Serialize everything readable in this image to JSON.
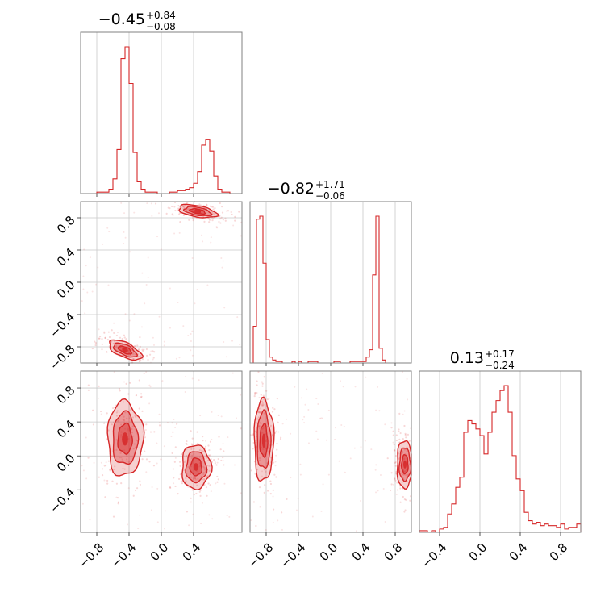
{
  "figure": {
    "type": "corner-plot",
    "color": "#d62728"
  },
  "chart_data": [
    {
      "type": "histogram",
      "panel": "diag-0",
      "title": {
        "main": "−0.45",
        "up": "+0.84",
        "down": "−0.08"
      },
      "xlim": [
        -1.0,
        1.0
      ],
      "bin_edges_start": -1.0,
      "bin_width": 0.05,
      "counts": [
        0,
        0,
        0,
        0,
        1,
        1,
        1,
        3,
        10,
        30,
        92,
        100,
        75,
        28,
        8,
        3,
        1,
        1,
        1,
        0,
        0,
        0,
        1,
        1,
        2,
        2,
        3,
        4,
        7,
        15,
        33,
        37,
        29,
        12,
        3,
        1,
        1,
        0,
        0,
        0
      ],
      "xticks": [
        "−0.8",
        "−0.4",
        "0.0",
        "0.4"
      ],
      "xtick_values": [
        -0.8,
        -0.4,
        0.0,
        0.4
      ]
    },
    {
      "type": "histogram",
      "panel": "diag-1",
      "title": {
        "main": "−0.82",
        "up": "+1.71",
        "down": "−0.06"
      },
      "xlim": [
        -1.0,
        1.0
      ],
      "bin_edges_start": -1.0,
      "bin_width": 0.04,
      "counts": [
        0,
        25,
        98,
        100,
        68,
        16,
        4,
        2,
        1,
        1,
        0,
        0,
        0,
        1,
        0,
        1,
        0,
        0,
        1,
        1,
        1,
        0,
        0,
        0,
        0,
        0,
        1,
        1,
        0,
        0,
        0,
        1,
        1,
        1,
        1,
        1,
        4,
        9,
        60,
        100,
        10,
        2
      ],
      "xticks": [
        "−0.8",
        "−0.4",
        "0.0",
        "0.4",
        "0.8"
      ],
      "xtick_values": [
        -0.8,
        -0.4,
        0.0,
        0.4,
        0.8
      ]
    },
    {
      "type": "histogram",
      "panel": "diag-2",
      "title": {
        "main": "0.13",
        "up": "+0.17",
        "down": "−0.24"
      },
      "xlim": [
        -0.6,
        1.0
      ],
      "bin_edges_start": -0.6,
      "bin_width": 0.04,
      "counts": [
        1,
        1,
        0,
        1,
        0,
        2,
        3,
        11,
        17,
        27,
        33,
        60,
        67,
        65,
        62,
        58,
        47,
        60,
        72,
        79,
        85,
        88,
        72,
        46,
        32,
        25,
        12,
        7,
        5,
        6,
        4,
        5,
        4,
        4,
        3,
        5,
        2,
        3,
        3,
        5
      ],
      "xticks": [
        "−0.4",
        "0.0",
        "0.4",
        "0.8"
      ],
      "xtick_values": [
        -0.4,
        0.0,
        0.4,
        0.8
      ]
    },
    {
      "type": "scatter-density",
      "panel": "p10",
      "xlim": [
        -1.0,
        1.0
      ],
      "ylim": [
        -1.0,
        1.0
      ],
      "xtick_values": [
        -0.8,
        -0.4,
        0.0,
        0.4
      ],
      "ytick_values": [
        -0.8,
        -0.4,
        0.0,
        0.4,
        0.8
      ],
      "yticks": [
        "−0.8",
        "−0.4",
        "0.0",
        "0.4",
        "0.8"
      ],
      "modes": [
        {
          "x": -0.45,
          "y": -0.84,
          "sx": 0.11,
          "sy": 0.045,
          "rot": -25,
          "levels": 3
        },
        {
          "x": 0.45,
          "y": 0.88,
          "sx": 0.12,
          "sy": 0.035,
          "rot": -10,
          "levels": 3
        }
      ]
    },
    {
      "type": "scatter-density",
      "panel": "p20",
      "xlim": [
        -1.0,
        1.0
      ],
      "ylim": [
        -0.9,
        1.0
      ],
      "xtick_values": [
        -0.8,
        -0.4,
        0.0,
        0.4
      ],
      "xticks": [
        "−0.8",
        "−0.4",
        "0.0",
        "0.4"
      ],
      "ytick_values": [
        -0.4,
        0.0,
        0.4,
        0.8
      ],
      "yticks": [
        "−0.4",
        "0.0",
        "0.4",
        "0.8"
      ],
      "modes": [
        {
          "x": -0.45,
          "y": 0.2,
          "sx": 0.11,
          "sy": 0.22,
          "rot": 0,
          "levels": 3
        },
        {
          "x": 0.43,
          "y": -0.13,
          "sx": 0.09,
          "sy": 0.13,
          "rot": 0,
          "levels": 3
        }
      ]
    },
    {
      "type": "scatter-density",
      "panel": "p21",
      "xlim": [
        -1.0,
        1.0
      ],
      "ylim": [
        -0.9,
        1.0
      ],
      "xtick_values": [
        -0.8,
        -0.4,
        0.0,
        0.4,
        0.8
      ],
      "xticks": [
        "−0.8",
        "−0.4",
        "0.0",
        "0.4",
        "0.8"
      ],
      "modes": [
        {
          "x": -0.83,
          "y": 0.18,
          "sx": 0.06,
          "sy": 0.24,
          "rot": 0,
          "levels": 3
        },
        {
          "x": 0.92,
          "y": -0.1,
          "sx": 0.05,
          "sy": 0.14,
          "rot": 0,
          "levels": 3
        }
      ]
    }
  ]
}
